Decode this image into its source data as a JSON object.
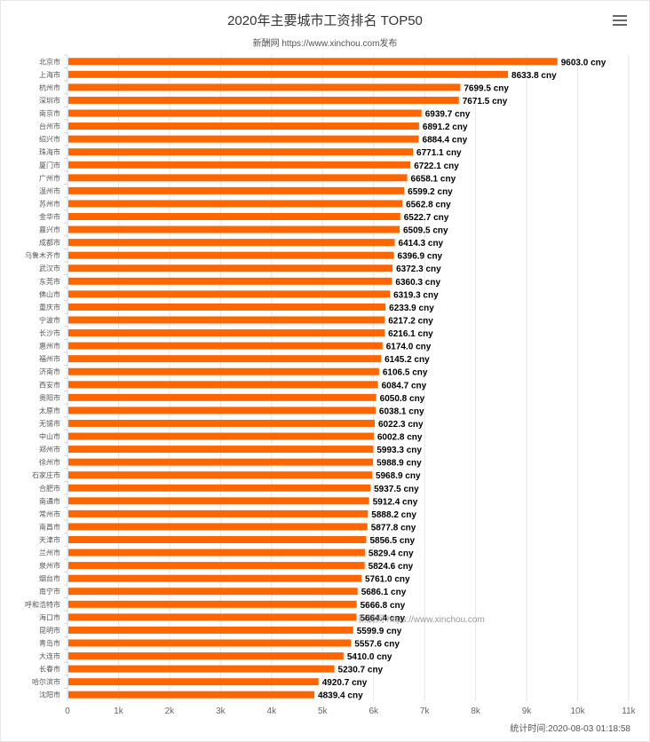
{
  "header": {
    "title": "2020年主要城市工资排名 TOP50",
    "subtitle": "新酬网 https://www.xinchou.com发布",
    "menu_icon": "hamburger-menu-icon"
  },
  "watermark": "新酬网 https://www.xinchou.com",
  "footer": {
    "time_text": "统计时间:2020-08-03 01:18:58"
  },
  "colors": {
    "bar": "#ff6600",
    "grid": "#e6e6e6",
    "text": "#333333",
    "label": "#000000"
  },
  "chart_data": {
    "type": "bar",
    "orientation": "horizontal",
    "title": "2020年主要城市工资排名 TOP50",
    "subtitle": "新酬网 https://www.xinchou.com发布",
    "unit_suffix": " cny",
    "xlim": [
      0,
      11000
    ],
    "x_ticks": [
      0,
      1000,
      2000,
      3000,
      4000,
      5000,
      6000,
      7000,
      8000,
      9000,
      10000,
      11000
    ],
    "x_tick_labels": [
      "0",
      "1k",
      "2k",
      "3k",
      "4k",
      "5k",
      "6k",
      "7k",
      "8k",
      "9k",
      "10k",
      "11k"
    ],
    "grid": true,
    "categories": [
      "北京市",
      "上海市",
      "杭州市",
      "深圳市",
      "南京市",
      "台州市",
      "绍兴市",
      "珠海市",
      "厦门市",
      "广州市",
      "温州市",
      "苏州市",
      "金华市",
      "嘉兴市",
      "成都市",
      "乌鲁木齐市",
      "武汉市",
      "东莞市",
      "佛山市",
      "重庆市",
      "宁波市",
      "长沙市",
      "惠州市",
      "福州市",
      "济南市",
      "西安市",
      "贵阳市",
      "太原市",
      "无锡市",
      "中山市",
      "郑州市",
      "徐州市",
      "石家庄市",
      "合肥市",
      "南通市",
      "常州市",
      "南昌市",
      "天津市",
      "兰州市",
      "泉州市",
      "烟台市",
      "南宁市",
      "呼和浩特市",
      "海口市",
      "昆明市",
      "青岛市",
      "大连市",
      "长春市",
      "哈尔滨市",
      "沈阳市"
    ],
    "values": [
      9603.0,
      8633.8,
      7699.5,
      7671.5,
      6939.7,
      6891.2,
      6884.4,
      6771.1,
      6722.1,
      6658.1,
      6599.2,
      6562.8,
      6522.7,
      6509.5,
      6414.3,
      6396.9,
      6372.3,
      6360.3,
      6319.3,
      6233.9,
      6217.2,
      6216.1,
      6174.0,
      6145.2,
      6106.5,
      6084.7,
      6050.8,
      6038.1,
      6022.3,
      6002.8,
      5993.3,
      5988.9,
      5968.9,
      5937.5,
      5912.4,
      5888.2,
      5877.8,
      5856.5,
      5829.4,
      5824.6,
      5761.0,
      5686.1,
      5666.8,
      5664.4,
      5599.9,
      5557.6,
      5410.0,
      5230.7,
      4920.7,
      4839.4
    ],
    "value_labels": [
      "9603.0 cny",
      "8633.8 cny",
      "7699.5 cny",
      "7671.5 cny",
      "6939.7 cny",
      "6891.2 cny",
      "6884.4 cny",
      "6771.1 cny",
      "6722.1 cny",
      "6658.1 cny",
      "6599.2 cny",
      "6562.8 cny",
      "6522.7 cny",
      "6509.5 cny",
      "6414.3 cny",
      "6396.9 cny",
      "6372.3 cny",
      "6360.3 cny",
      "6319.3 cny",
      "6233.9 cny",
      "6217.2 cny",
      "6216.1 cny",
      "6174.0 cny",
      "6145.2 cny",
      "6106.5 cny",
      "6084.7 cny",
      "6050.8 cny",
      "6038.1 cny",
      "6022.3 cny",
      "6002.8 cny",
      "5993.3 cny",
      "5988.9 cny",
      "5968.9 cny",
      "5937.5 cny",
      "5912.4 cny",
      "5888.2 cny",
      "5877.8 cny",
      "5856.5 cny",
      "5829.4 cny",
      "5824.6 cny",
      "5761.0 cny",
      "5686.1 cny",
      "5666.8 cny",
      "5664.4 cny",
      "5599.9 cny",
      "5557.6 cny",
      "5410.0 cny",
      "5230.7 cny",
      "4920.7 cny",
      "4839.4 cny"
    ]
  }
}
